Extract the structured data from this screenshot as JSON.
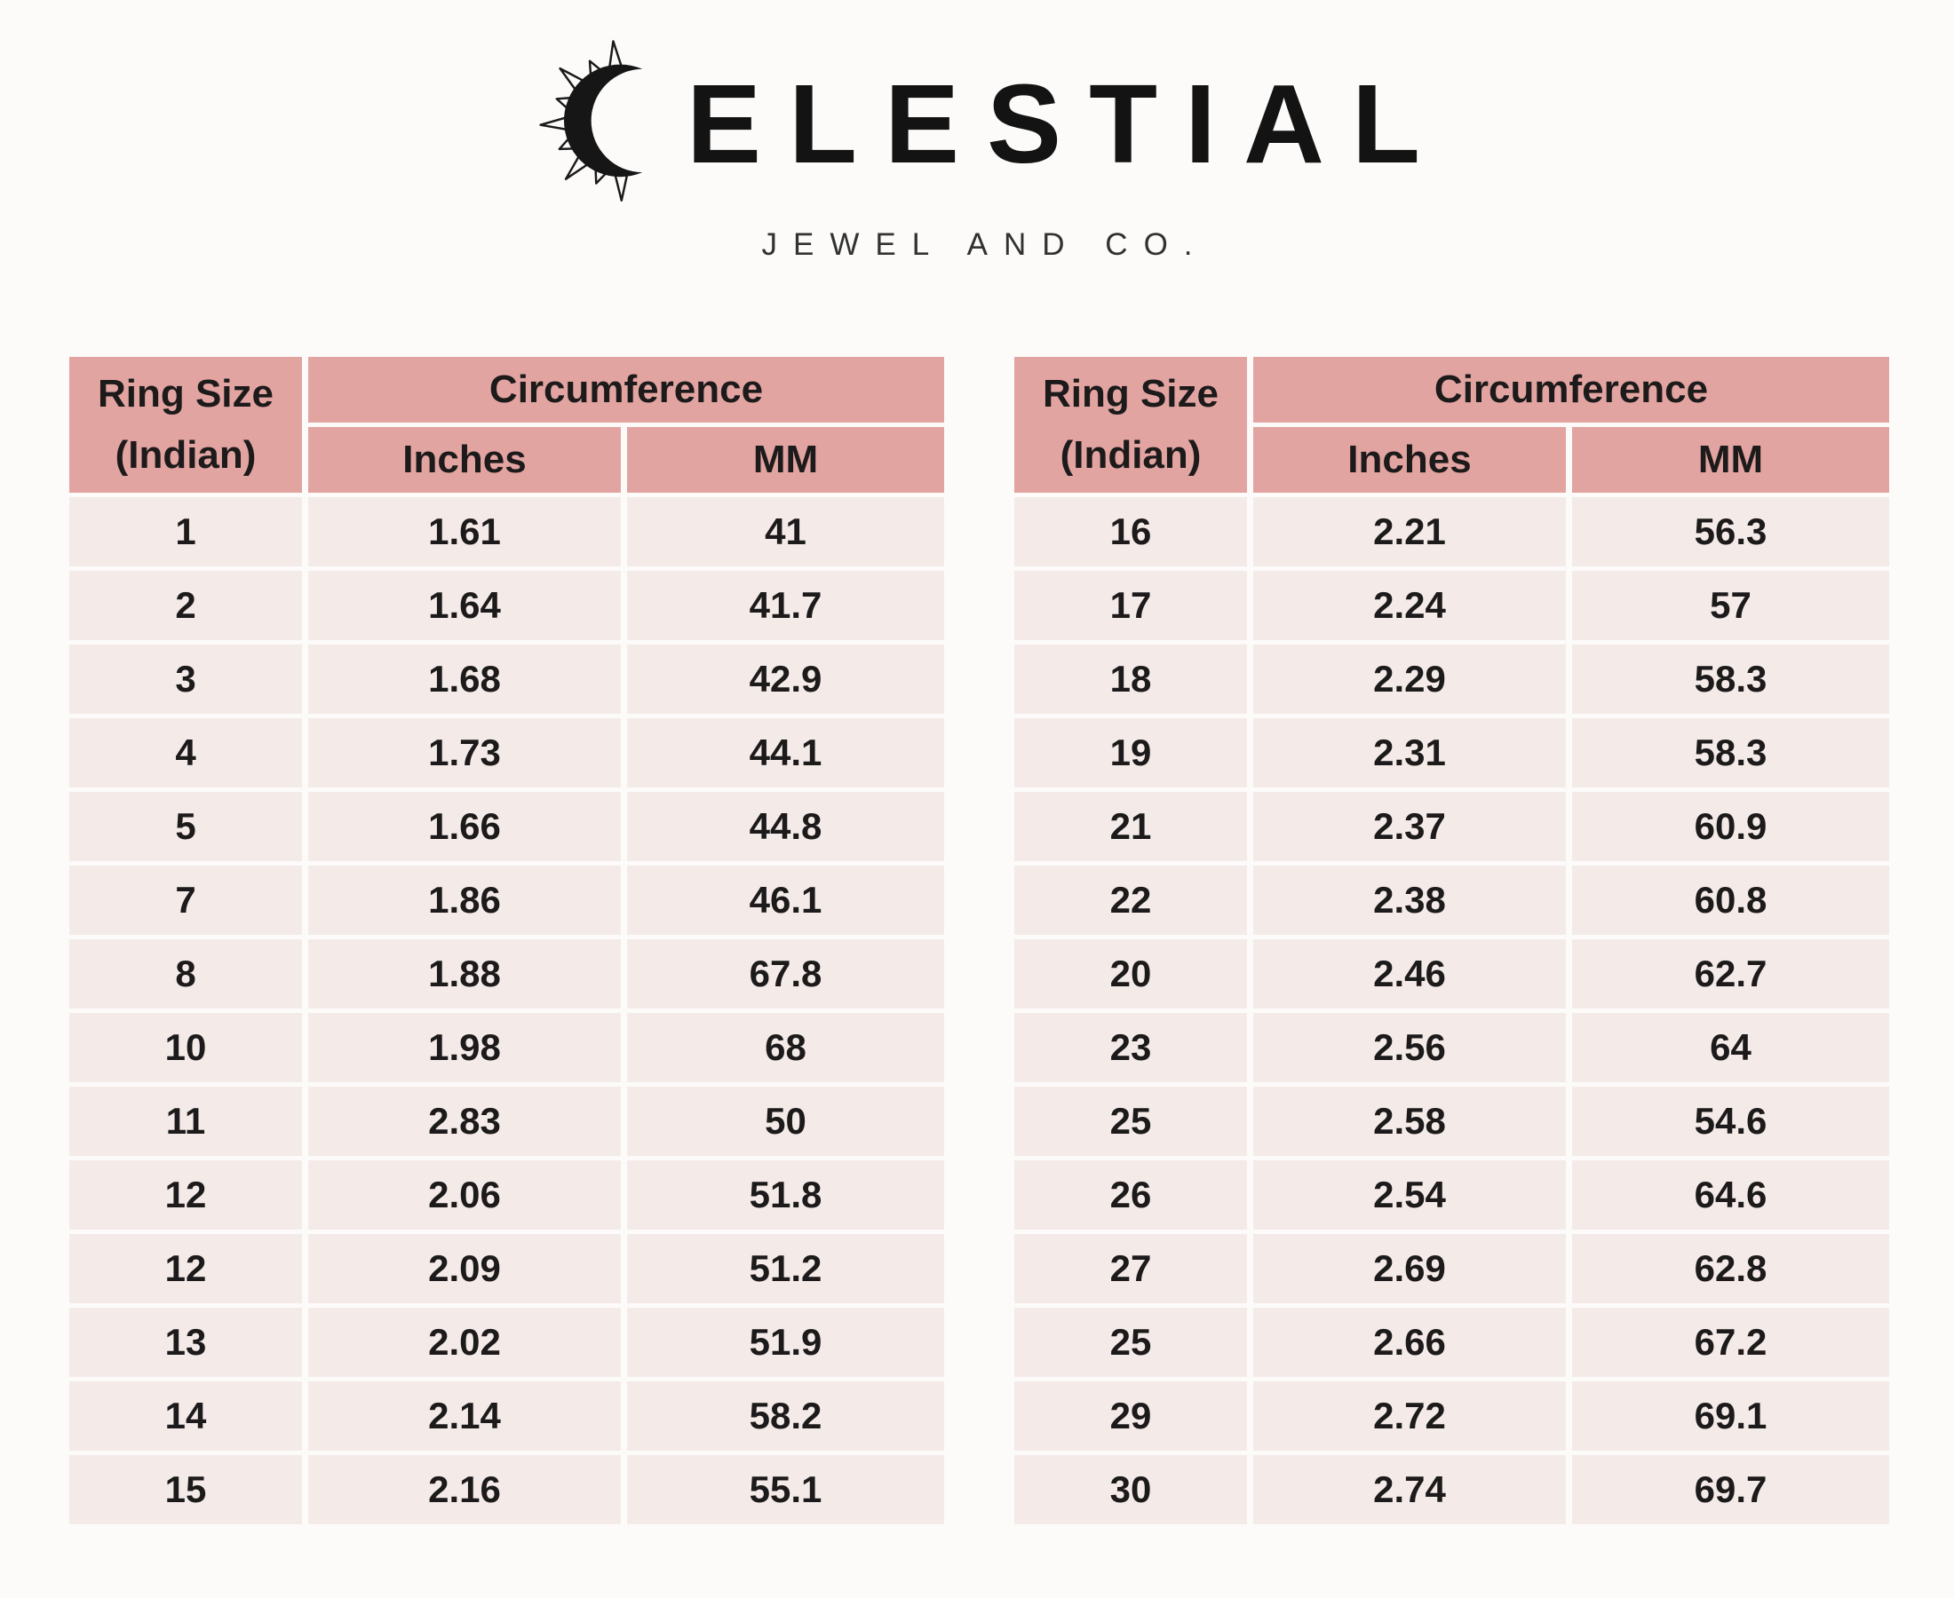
{
  "brand": {
    "logo_text": "ELESTIAL",
    "full_name": "CELESTIAL",
    "subtitle": "JEWEL AND CO."
  },
  "table_header": {
    "ring_size_line1": "Ring Size",
    "ring_size_line2": "(Indian)",
    "circumference": "Circumference",
    "inches": "Inches",
    "mm": "MM"
  },
  "tables": {
    "left": {
      "rows": [
        [
          "1",
          "1.61",
          "41"
        ],
        [
          "2",
          "1.64",
          "41.7"
        ],
        [
          "3",
          "1.68",
          "42.9"
        ],
        [
          "4",
          "1.73",
          "44.1"
        ],
        [
          "5",
          "1.66",
          "44.8"
        ],
        [
          "7",
          "1.86",
          "46.1"
        ],
        [
          "8",
          "1.88",
          "67.8"
        ],
        [
          "10",
          "1.98",
          "68"
        ],
        [
          "11",
          "2.83",
          "50"
        ],
        [
          "12",
          "2.06",
          "51.8"
        ],
        [
          "12",
          "2.09",
          "51.2"
        ],
        [
          "13",
          "2.02",
          "51.9"
        ],
        [
          "14",
          "2.14",
          "58.2"
        ],
        [
          "15",
          "2.16",
          "55.1"
        ]
      ]
    },
    "right": {
      "rows": [
        [
          "16",
          "2.21",
          "56.3"
        ],
        [
          "17",
          "2.24",
          "57"
        ],
        [
          "18",
          "2.29",
          "58.3"
        ],
        [
          "19",
          "2.31",
          "58.3"
        ],
        [
          "21",
          "2.37",
          "60.9"
        ],
        [
          "22",
          "2.38",
          "60.8"
        ],
        [
          "20",
          "2.46",
          "62.7"
        ],
        [
          "23",
          "2.56",
          "64"
        ],
        [
          "25",
          "2.58",
          "54.6"
        ],
        [
          "26",
          "2.54",
          "64.6"
        ],
        [
          "27",
          "2.69",
          "62.8"
        ],
        [
          "25",
          "2.66",
          "67.2"
        ],
        [
          "29",
          "2.72",
          "69.1"
        ],
        [
          "30",
          "2.74",
          "69.7"
        ]
      ]
    }
  },
  "colors": {
    "header_bg": "#e2a4a1",
    "row_bg": "#f4ebe9",
    "page_bg": "#fcfbfa",
    "text": "#1c1a1a"
  }
}
